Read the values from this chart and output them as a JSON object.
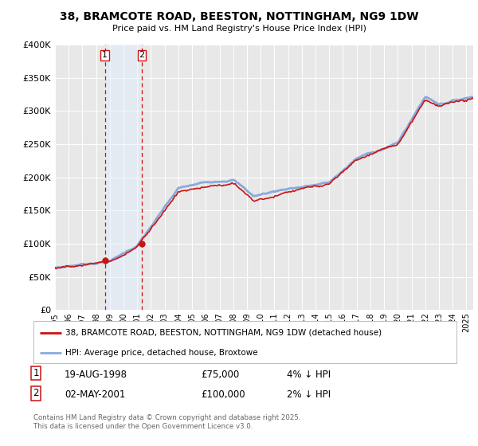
{
  "title": "38, BRAMCOTE ROAD, BEESTON, NOTTINGHAM, NG9 1DW",
  "subtitle": "Price paid vs. HM Land Registry's House Price Index (HPI)",
  "background_color": "#ffffff",
  "plot_bg_color": "#e8e8e8",
  "legend_line1": "38, BRAMCOTE ROAD, BEESTON, NOTTINGHAM, NG9 1DW (detached house)",
  "legend_line2": "HPI: Average price, detached house, Broxtowe",
  "transaction1_date": "19-AUG-1998",
  "transaction1_price": 75000,
  "transaction1_hpi": "4% ↓ HPI",
  "transaction2_date": "02-MAY-2001",
  "transaction2_price": 100000,
  "transaction2_hpi": "2% ↓ HPI",
  "footer": "Contains HM Land Registry data © Crown copyright and database right 2025.\nThis data is licensed under the Open Government Licence v3.0.",
  "hpi_color": "#88aadd",
  "price_color": "#cc1111",
  "marker_color": "#cc1111",
  "vline_color": "#cc1111",
  "shade_color": "#ddeeff",
  "ylim_max": 400000,
  "ylim_min": 0,
  "t1_year": 1998.634,
  "t2_year": 2001.333,
  "t1_price": 75000,
  "t2_price": 100000
}
